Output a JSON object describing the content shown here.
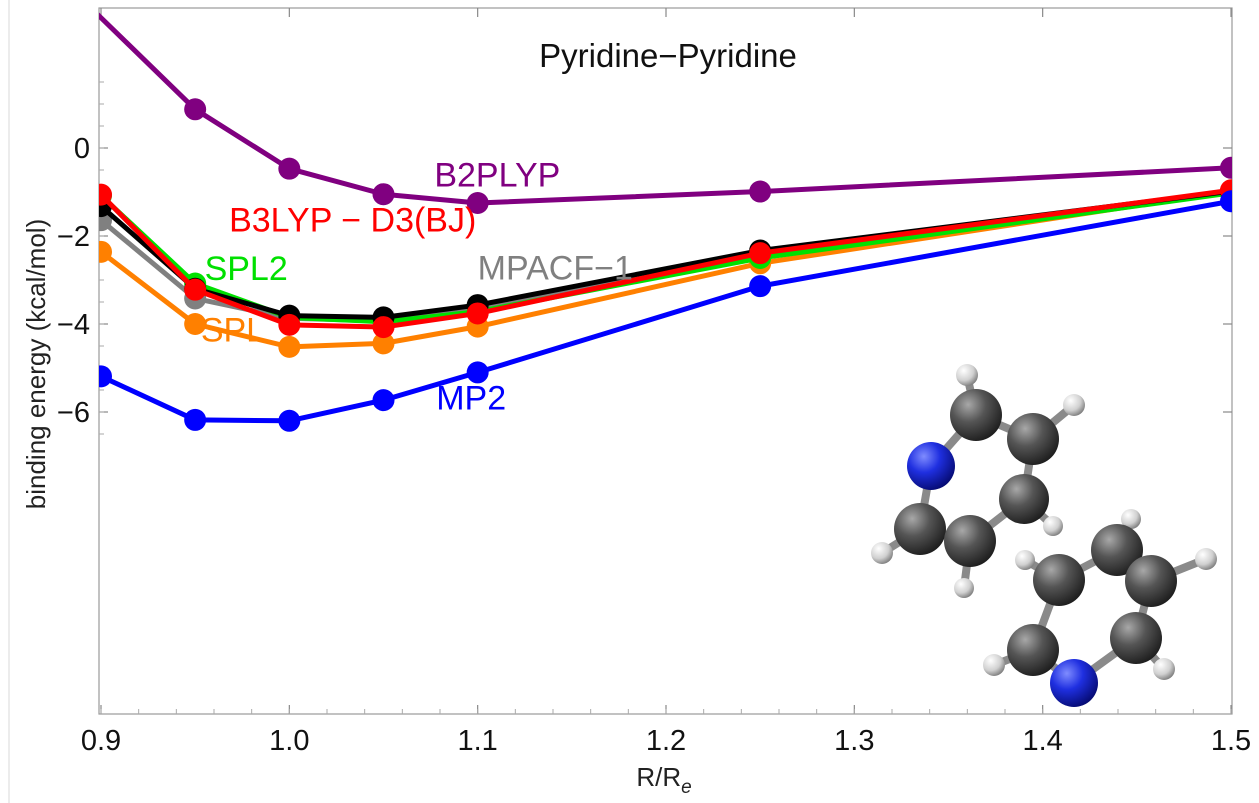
{
  "chart_data": {
    "type": "line",
    "title": "Pyridine−Pyridine",
    "xlabel": "R/R",
    "xlabel_sub": "e",
    "ylabel": "binding energy (kcal/mol)",
    "xlim": [
      0.9,
      1.5
    ],
    "ylim": [
      -6.5,
      1.6
    ],
    "xticks": [
      0.9,
      1.0,
      1.1,
      1.2,
      1.3,
      1.4,
      1.5
    ],
    "xtick_labels": [
      "0.9",
      "1.0",
      "1.1",
      "1.2",
      "1.3",
      "1.4",
      "1.5"
    ],
    "yticks": [
      -6,
      -4,
      -2,
      0
    ],
    "ytick_labels": [
      "−6",
      "−4",
      "−2",
      "0"
    ],
    "grid": false,
    "legend": "inline labels",
    "x": [
      0.9,
      0.95,
      1.0,
      1.05,
      1.1,
      1.25,
      1.5
    ],
    "series": [
      {
        "name": "B2PLYP",
        "color": "#800080",
        "x": [
          0.875,
          0.95,
          1.0,
          1.05,
          1.1,
          1.25,
          1.5
        ],
        "values": [
          4.0,
          0.88,
          -0.47,
          -1.05,
          -1.25,
          -0.99,
          -0.45
        ]
      },
      {
        "name": "SPL",
        "color": "#ff8000",
        "values": [
          -2.36,
          -4.0,
          -4.52,
          -4.44,
          -4.06,
          -2.62,
          -0.98
        ]
      },
      {
        "name": "MPACF−1",
        "color": "#808080",
        "values": [
          -1.64,
          -3.42,
          -3.87,
          -3.93,
          -3.66,
          -2.45,
          -1.01
        ]
      },
      {
        "name": "SPL2",
        "color": "#00e000",
        "values": [
          -1.08,
          -3.08,
          -3.85,
          -3.95,
          -3.72,
          -2.5,
          -1.02
        ]
      },
      {
        "name": "",
        "color": "#000000",
        "values": [
          -1.32,
          -3.2,
          -3.81,
          -3.85,
          -3.57,
          -2.33,
          -0.98
        ]
      },
      {
        "name": "B3LYP − D3(BJ)",
        "color": "#ff0000",
        "values": [
          -1.06,
          -3.22,
          -4.02,
          -4.07,
          -3.76,
          -2.39,
          -0.96
        ]
      },
      {
        "name": "MP2",
        "color": "#0000ff",
        "values": [
          -5.19,
          -6.18,
          -6.2,
          -5.73,
          -5.1,
          -3.14,
          -1.21
        ]
      }
    ],
    "labels": [
      {
        "text": "B2PLYP",
        "color": "#800080",
        "x": 1.077,
        "y": -0.88
      },
      {
        "text": "B3LYP − D3(BJ)",
        "color": "#ff0000",
        "x": 0.968,
        "y": -1.9
      },
      {
        "text": "SPL2",
        "color": "#00e000",
        "x": 0.955,
        "y": -3.0
      },
      {
        "text": "MPACF−1",
        "color": "#808080",
        "x": 1.1,
        "y": -2.99
      },
      {
        "text": "SPL",
        "color": "#ff8000",
        "x": 0.953,
        "y": -4.4
      },
      {
        "text": "MP2",
        "color": "#0000ff",
        "x": 1.078,
        "y": -5.94
      }
    ]
  }
}
